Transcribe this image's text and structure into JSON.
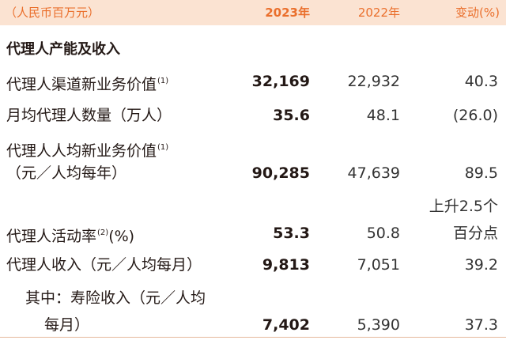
{
  "header": {
    "label": "（人民币百万元）",
    "col_2023": "2023年",
    "col_2022": "2022年",
    "col_change": "变动(%)"
  },
  "section_title": "代理人产能及收入",
  "rows": [
    {
      "label": "代理人渠道新业务价值",
      "note": "(1)",
      "v2023": "32,169",
      "v2022": "22,932",
      "change": "40.3"
    },
    {
      "label": "月均代理人数量（万人）",
      "v2023": "35.6",
      "v2022": "48.1",
      "change": "(26.0)"
    },
    {
      "label_line1": "代理人人均新业务价值",
      "note": "(1)",
      "label_line2": "（元／人均每年）",
      "v2023": "90,285",
      "v2022": "47,639",
      "change": "89.5"
    },
    {
      "label_prefix": "代理人活动率",
      "note": "(2)",
      "label_suffix": "(%)",
      "v2023": "53.3",
      "v2022": "50.8",
      "change_line1": "上升2.5个",
      "change_line2": "百分点"
    },
    {
      "label": "代理人收入（元／人均每月）",
      "v2023": "9,813",
      "v2022": "7,051",
      "change": "39.2"
    },
    {
      "label_line1": "其中：寿险收入（元／人均",
      "label_line2": "每月）",
      "v2023": "7,402",
      "v2022": "5,390",
      "change": "37.3"
    }
  ]
}
